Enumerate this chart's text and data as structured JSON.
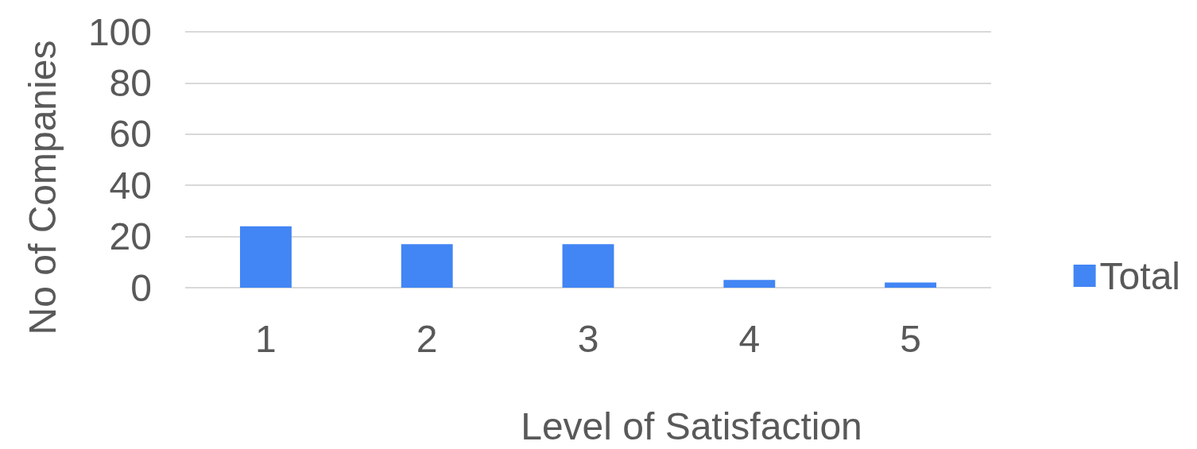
{
  "chart_data": {
    "type": "bar",
    "xlabel": "Level of Satisfaction",
    "ylabel": "No of Companies",
    "categories": [
      "1",
      "2",
      "3",
      "4",
      "5"
    ],
    "series": [
      {
        "name": "Total",
        "color": "#4285f4",
        "values": [
          24,
          17,
          17,
          3,
          2
        ]
      }
    ],
    "ylim": [
      0,
      100
    ],
    "yticks": [
      0,
      20,
      40,
      60,
      80,
      100
    ],
    "grid": "y",
    "legend": "right"
  }
}
